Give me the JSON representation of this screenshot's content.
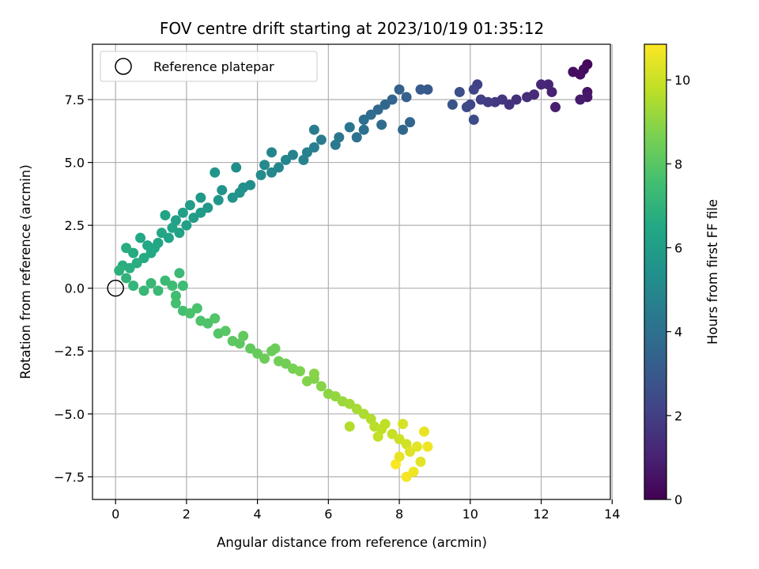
{
  "chart_data": {
    "type": "scatter",
    "title": "FOV centre drift starting at 2023/10/19 01:35:12",
    "xlabel": "Angular distance from reference (arcmin)",
    "ylabel": "Rotation from reference (arcmin)",
    "xlim": [
      -0.65,
      13.95
    ],
    "ylim": [
      -8.4,
      9.7
    ],
    "xticks": [
      0,
      2,
      4,
      6,
      8,
      10,
      12,
      14
    ],
    "yticks": [
      -7.5,
      -5.0,
      -2.5,
      0.0,
      2.5,
      5.0,
      7.5
    ],
    "grid": true,
    "legend": {
      "placement": "upper-left",
      "entries": [
        "Reference platepar"
      ]
    },
    "colorbar": {
      "label": "Hours from first FF file",
      "range": [
        0,
        10.85
      ],
      "ticks": [
        0,
        2,
        4,
        6,
        8,
        10
      ],
      "colormap": "viridis"
    },
    "reference_point": {
      "x": 0,
      "y": 0
    },
    "series": [
      {
        "points": [
          [
            13.3,
            8.9
          ],
          [
            13.2,
            8.7
          ],
          [
            13.1,
            8.5
          ],
          [
            12.9,
            8.6
          ],
          [
            13.3,
            7.8
          ],
          [
            13.3,
            7.6
          ],
          [
            13.1,
            7.5
          ],
          [
            12.4,
            7.2
          ],
          [
            12.3,
            7.8
          ],
          [
            12.2,
            8.1
          ],
          [
            12.0,
            8.1
          ],
          [
            11.8,
            7.7
          ],
          [
            11.6,
            7.6
          ],
          [
            11.3,
            7.5
          ],
          [
            11.1,
            7.3
          ],
          [
            10.9,
            7.5
          ],
          [
            10.7,
            7.4
          ],
          [
            10.5,
            7.4
          ],
          [
            10.3,
            7.5
          ],
          [
            10.2,
            8.1
          ],
          [
            10.1,
            7.9
          ],
          [
            10.0,
            7.3
          ],
          [
            9.9,
            7.2
          ],
          [
            10.1,
            6.7
          ],
          [
            9.7,
            7.8
          ],
          [
            9.5,
            7.3
          ],
          [
            8.8,
            7.9
          ],
          [
            8.6,
            7.9
          ],
          [
            8.2,
            7.6
          ],
          [
            8.0,
            7.9
          ],
          [
            7.8,
            7.5
          ],
          [
            7.6,
            7.3
          ],
          [
            7.4,
            7.1
          ],
          [
            7.2,
            6.9
          ],
          [
            7.0,
            6.7
          ],
          [
            8.3,
            6.6
          ],
          [
            8.1,
            6.3
          ],
          [
            7.5,
            6.5
          ],
          [
            7.0,
            6.3
          ],
          [
            6.8,
            6.0
          ],
          [
            6.6,
            6.4
          ],
          [
            6.3,
            6.0
          ],
          [
            6.2,
            5.7
          ],
          [
            5.8,
            5.9
          ],
          [
            5.6,
            5.6
          ],
          [
            5.6,
            6.3
          ],
          [
            5.4,
            5.4
          ],
          [
            5.3,
            5.1
          ],
          [
            5.0,
            5.3
          ],
          [
            4.8,
            5.1
          ],
          [
            4.6,
            4.8
          ],
          [
            4.4,
            4.6
          ],
          [
            4.4,
            5.4
          ],
          [
            4.2,
            4.9
          ],
          [
            4.1,
            4.5
          ],
          [
            3.8,
            4.1
          ],
          [
            3.6,
            4.0
          ],
          [
            3.5,
            3.8
          ],
          [
            3.4,
            4.8
          ],
          [
            3.3,
            3.6
          ],
          [
            3.0,
            3.9
          ],
          [
            2.9,
            3.5
          ],
          [
            2.8,
            4.6
          ],
          [
            2.6,
            3.2
          ],
          [
            2.4,
            3.0
          ],
          [
            2.4,
            3.6
          ],
          [
            2.2,
            2.8
          ],
          [
            2.1,
            3.3
          ],
          [
            2.0,
            2.5
          ],
          [
            1.9,
            3.0
          ],
          [
            1.8,
            2.2
          ],
          [
            1.7,
            2.7
          ],
          [
            1.6,
            2.4
          ],
          [
            1.5,
            2.0
          ],
          [
            1.4,
            2.9
          ],
          [
            1.3,
            2.2
          ],
          [
            1.2,
            1.8
          ],
          [
            1.1,
            1.6
          ],
          [
            1.0,
            1.4
          ],
          [
            0.9,
            1.7
          ],
          [
            0.8,
            1.2
          ],
          [
            0.7,
            2.0
          ],
          [
            0.6,
            1.0
          ],
          [
            0.5,
            1.4
          ],
          [
            0.4,
            0.8
          ],
          [
            0.3,
            1.6
          ],
          [
            0.2,
            0.9
          ],
          [
            0.1,
            0.7
          ],
          [
            0.3,
            0.4
          ],
          [
            0.5,
            0.1
          ],
          [
            0.8,
            -0.1
          ],
          [
            1.0,
            0.2
          ],
          [
            1.2,
            -0.1
          ],
          [
            1.4,
            0.3
          ],
          [
            1.6,
            0.1
          ],
          [
            1.7,
            -0.3
          ],
          [
            1.9,
            0.1
          ],
          [
            1.8,
            0.6
          ],
          [
            1.7,
            -0.6
          ],
          [
            1.9,
            -0.9
          ],
          [
            2.1,
            -1.0
          ],
          [
            2.3,
            -0.8
          ],
          [
            2.4,
            -1.3
          ],
          [
            2.6,
            -1.4
          ],
          [
            2.8,
            -1.2
          ],
          [
            2.9,
            -1.8
          ],
          [
            3.1,
            -1.7
          ],
          [
            3.3,
            -2.1
          ],
          [
            3.5,
            -2.2
          ],
          [
            3.6,
            -1.9
          ],
          [
            3.8,
            -2.4
          ],
          [
            4.0,
            -2.6
          ],
          [
            4.2,
            -2.8
          ],
          [
            4.4,
            -2.5
          ],
          [
            4.6,
            -2.9
          ],
          [
            4.8,
            -3.0
          ],
          [
            5.0,
            -3.2
          ],
          [
            5.2,
            -3.3
          ],
          [
            5.4,
            -3.7
          ],
          [
            5.6,
            -3.6
          ],
          [
            5.8,
            -3.9
          ],
          [
            6.0,
            -4.2
          ],
          [
            6.2,
            -4.3
          ],
          [
            6.4,
            -4.5
          ],
          [
            6.6,
            -4.6
          ],
          [
            6.8,
            -4.8
          ],
          [
            7.0,
            -5.0
          ],
          [
            7.2,
            -5.2
          ],
          [
            7.3,
            -5.5
          ],
          [
            7.5,
            -5.6
          ],
          [
            7.6,
            -5.4
          ],
          [
            7.8,
            -5.8
          ],
          [
            8.0,
            -6.0
          ],
          [
            8.2,
            -6.2
          ],
          [
            8.3,
            -6.5
          ],
          [
            8.5,
            -6.3
          ],
          [
            8.7,
            -5.7
          ],
          [
            8.6,
            -6.9
          ],
          [
            8.4,
            -7.3
          ],
          [
            8.2,
            -7.5
          ],
          [
            7.9,
            -7.0
          ],
          [
            8.8,
            -6.3
          ],
          [
            8.0,
            -6.7
          ],
          [
            8.1,
            -5.4
          ],
          [
            7.4,
            -5.9
          ],
          [
            6.6,
            -5.5
          ],
          [
            5.6,
            -3.4
          ],
          [
            4.5,
            -2.4
          ]
        ],
        "hours": [
          0.2,
          0.3,
          0.4,
          0.4,
          0.6,
          0.7,
          0.8,
          0.9,
          1.0,
          1.1,
          1.2,
          1.3,
          1.4,
          1.5,
          1.6,
          1.7,
          1.8,
          1.9,
          2.0,
          2.1,
          2.2,
          2.3,
          2.4,
          2.5,
          2.6,
          2.8,
          3.0,
          3.1,
          3.3,
          3.4,
          3.5,
          3.6,
          3.7,
          3.8,
          3.9,
          3.5,
          3.6,
          3.8,
          4.0,
          4.1,
          4.2,
          4.3,
          4.4,
          4.5,
          4.6,
          4.5,
          4.7,
          4.8,
          4.8,
          4.9,
          5.0,
          5.0,
          4.9,
          5.1,
          5.2,
          5.3,
          5.4,
          5.5,
          5.3,
          5.6,
          5.6,
          5.7,
          5.6,
          5.8,
          5.9,
          5.8,
          6.0,
          6.0,
          6.1,
          6.1,
          6.2,
          6.2,
          6.3,
          6.3,
          6.3,
          6.4,
          6.4,
          6.5,
          6.5,
          6.5,
          6.6,
          6.5,
          6.7,
          6.6,
          6.8,
          6.7,
          6.8,
          6.9,
          7.0,
          7.1,
          7.2,
          7.2,
          7.3,
          7.3,
          7.4,
          7.5,
          7.4,
          7.3,
          7.6,
          7.6,
          7.7,
          7.7,
          7.8,
          7.8,
          7.9,
          7.9,
          8.0,
          8.1,
          8.1,
          8.2,
          8.2,
          8.3,
          8.4,
          8.4,
          8.5,
          8.5,
          8.6,
          8.7,
          8.8,
          8.8,
          8.9,
          9.0,
          9.1,
          9.2,
          9.3,
          9.4,
          9.5,
          9.6,
          9.7,
          9.8,
          9.8,
          9.9,
          10.0,
          10.1,
          10.3,
          10.4,
          10.5,
          10.4,
          10.6,
          10.7,
          10.8,
          10.6,
          10.5,
          10.2,
          9.9,
          9.6,
          8.9,
          8.4
        ]
      }
    ]
  }
}
